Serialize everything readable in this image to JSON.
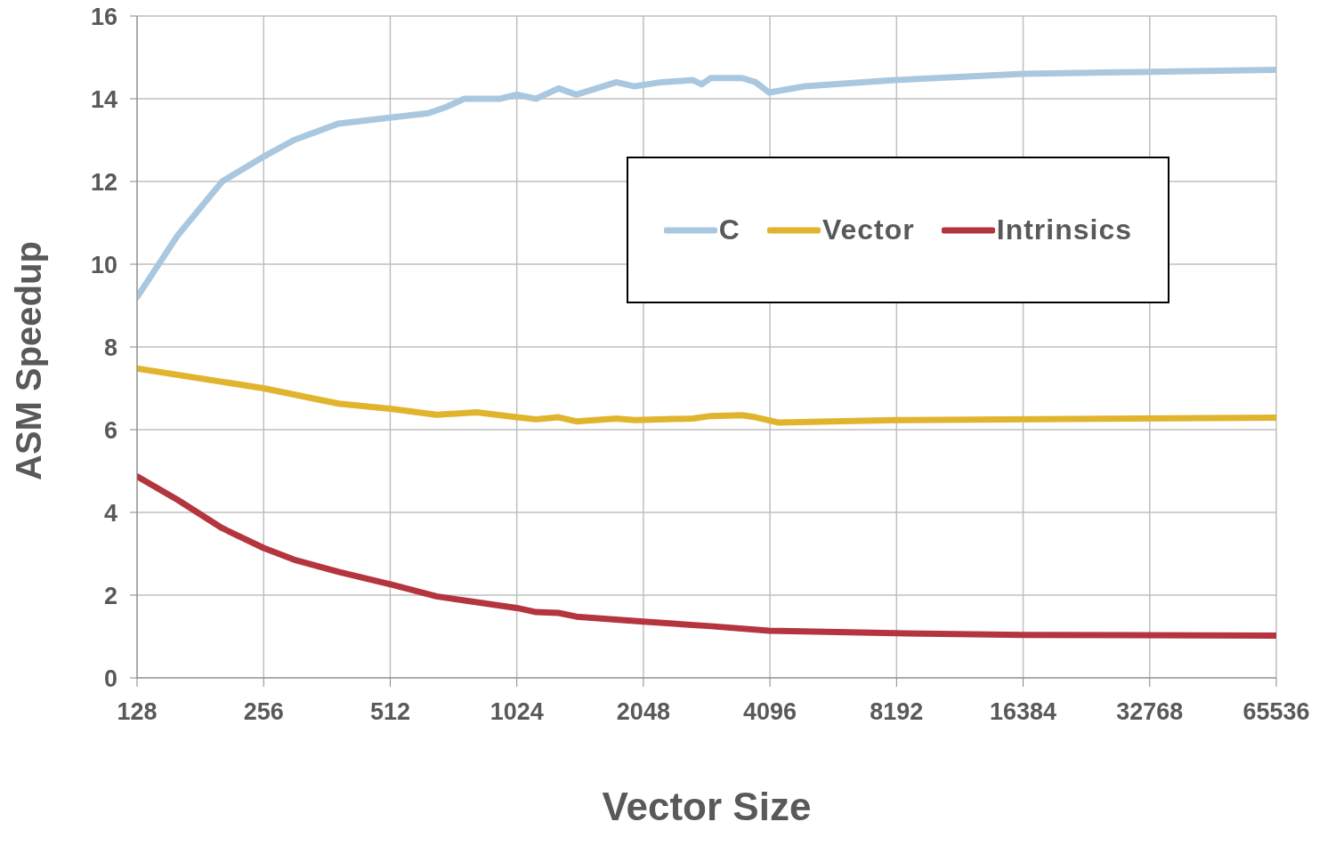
{
  "chart_data": {
    "type": "line",
    "xlabel": "Vector Size",
    "ylabel": "ASM Speedup",
    "log": "x",
    "xlim": [
      128,
      65536
    ],
    "xticks": [
      128,
      256,
      512,
      1024,
      2048,
      4096,
      8192,
      16384,
      32768,
      65536
    ],
    "ylim": [
      0,
      16
    ],
    "yticks": [
      0,
      2,
      4,
      6,
      8,
      10,
      12,
      14,
      16
    ],
    "grid": true,
    "legend": "top right",
    "marker": "none",
    "line_style": "solid",
    "series": [
      {
        "name": "C",
        "color": "#a9c8e0",
        "x": [
          128,
          160,
          204,
          256,
          302,
          386,
          470,
          631,
          696,
          768,
          934,
          1024,
          1138,
          1287,
          1419,
          1767,
          1950,
          2260,
          2686,
          2820,
          2960,
          3517,
          3785,
          4076,
          4960,
          8102,
          16384,
          32768,
          65536
        ],
        "values": [
          9.2,
          10.7,
          12.0,
          12.6,
          13.0,
          13.4,
          13.5,
          13.65,
          13.8,
          14.0,
          14.0,
          14.1,
          14.0,
          14.25,
          14.1,
          14.4,
          14.3,
          14.4,
          14.45,
          14.35,
          14.5,
          14.5,
          14.4,
          14.15,
          14.3,
          14.45,
          14.6,
          14.65,
          14.7
        ]
      },
      {
        "name": "Vector",
        "color": "#e0b42c",
        "x": [
          128,
          256,
          386,
          518,
          660,
          822,
          1024,
          1138,
          1287,
          1419,
          1767,
          1950,
          2686,
          2960,
          3517,
          3785,
          4300,
          8102,
          65536
        ],
        "values": [
          7.48,
          7.0,
          6.63,
          6.5,
          6.36,
          6.42,
          6.3,
          6.25,
          6.3,
          6.2,
          6.27,
          6.23,
          6.27,
          6.33,
          6.35,
          6.3,
          6.17,
          6.23,
          6.29
        ]
      },
      {
        "name": "Intrinsics",
        "color": "#b5353e",
        "x": [
          128,
          160,
          204,
          256,
          302,
          386,
          518,
          660,
          1024,
          1138,
          1287,
          1419,
          2048,
          2960,
          4076,
          8102,
          16384,
          65536
        ],
        "values": [
          4.87,
          4.3,
          3.62,
          3.14,
          2.86,
          2.56,
          2.25,
          1.97,
          1.69,
          1.59,
          1.57,
          1.48,
          1.36,
          1.25,
          1.14,
          1.08,
          1.04,
          1.02
        ]
      }
    ]
  }
}
